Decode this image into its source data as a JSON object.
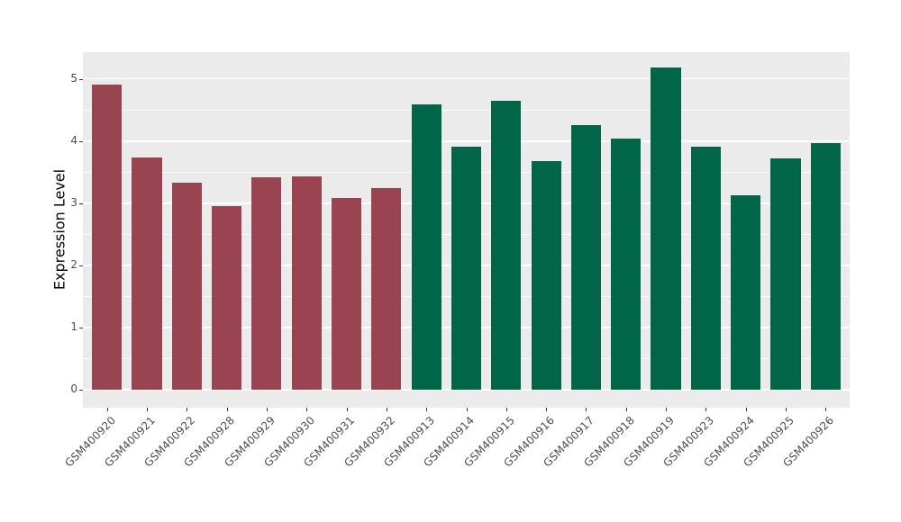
{
  "chart_data": {
    "type": "bar",
    "title": "",
    "xlabel": "",
    "ylabel": "Expression Level",
    "ylim": [
      -0.29,
      5.43
    ],
    "yticks": [
      0,
      1,
      2,
      3,
      4,
      5
    ],
    "yticks_minor": [
      0.5,
      1.5,
      2.5,
      3.5,
      4.5
    ],
    "grid": true,
    "legend_position": "none",
    "categories": [
      "GSM400920",
      "GSM400921",
      "GSM400922",
      "GSM400928",
      "GSM400929",
      "GSM400930",
      "GSM400931",
      "GSM400932",
      "GSM400913",
      "GSM400914",
      "GSM400915",
      "GSM400916",
      "GSM400917",
      "GSM400918",
      "GSM400919",
      "GSM400923",
      "GSM400924",
      "GSM400925",
      "GSM400926"
    ],
    "values": [
      4.91,
      3.74,
      3.33,
      2.95,
      3.41,
      3.43,
      3.08,
      3.24,
      4.59,
      3.91,
      4.65,
      3.68,
      4.25,
      4.04,
      5.19,
      3.91,
      3.13,
      3.72,
      3.97
    ],
    "groups": [
      "group1",
      "group1",
      "group1",
      "group1",
      "group1",
      "group1",
      "group1",
      "group1",
      "group2",
      "group2",
      "group2",
      "group2",
      "group2",
      "group2",
      "group2",
      "group2",
      "group2",
      "group2",
      "group2"
    ],
    "palette": {
      "group1": "#9A4451",
      "group2": "#006647"
    },
    "colors": {
      "panel_background": "#EBEBEB",
      "gridline": "#FFFFFF",
      "axis_text": "#4D4D4D",
      "axis_title": "#000000",
      "tick_mark": "#333333"
    }
  }
}
